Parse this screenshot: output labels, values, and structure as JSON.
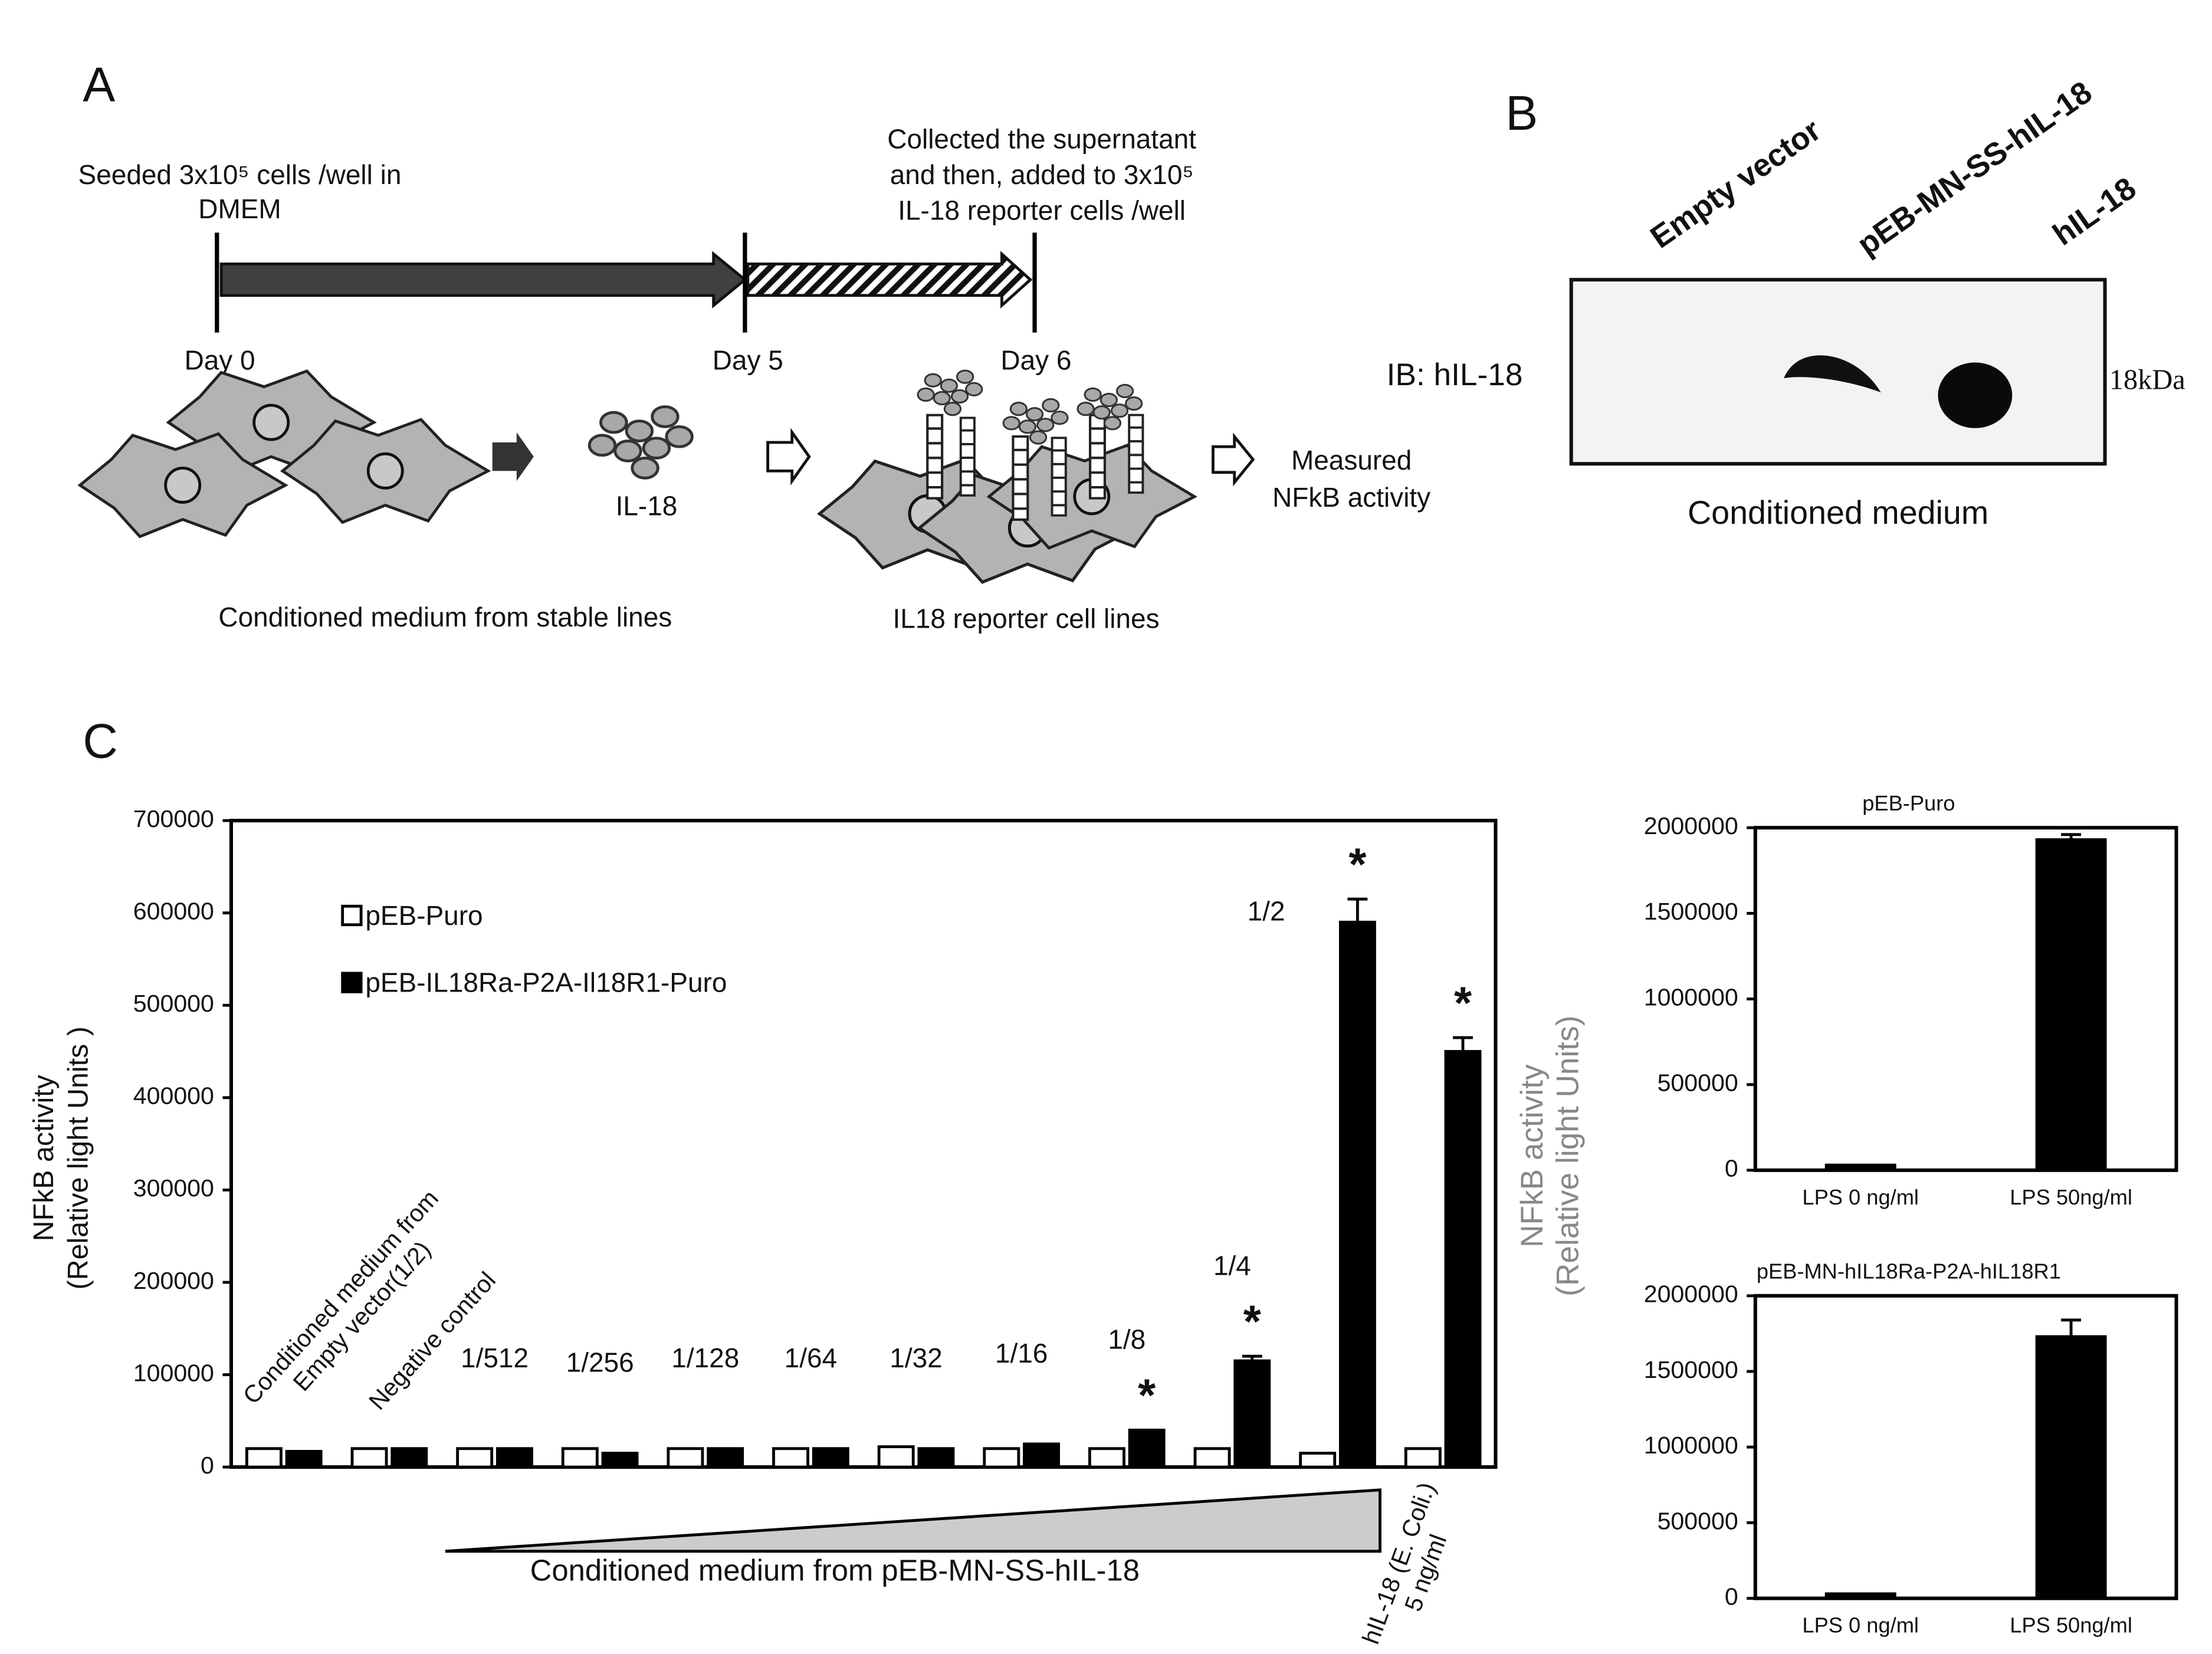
{
  "panel_a": {
    "label": "A",
    "seed_line1": "Seeded 3x10⁵ cells /well in",
    "seed_line2": "DMEM",
    "collect_line1": "Collected the supernatant",
    "collect_line2": "and then, added to  3x10⁵",
    "collect_line3": "IL-18 reporter cells /well",
    "day0": "Day 0",
    "day5": "Day 5",
    "day6": "Day 6",
    "il18": "IL-18",
    "measured_line1": "Measured",
    "measured_line2": "NFkB activity",
    "caption_left": "Conditioned medium from stable lines",
    "caption_right": "IL18 reporter cell lines"
  },
  "panel_b": {
    "label": "B",
    "lanes": [
      "Empty vector",
      "pEB-MN-SS-hIL-18",
      "hIL-18"
    ],
    "antibody": "IB: hIL-18",
    "marker": "18kDa",
    "caption": "Conditioned medium"
  },
  "panel_c": {
    "label": "C",
    "small_ylabel": [
      "NFkB activity",
      "(Relative light Units)"
    ]
  },
  "chart_data": [
    {
      "type": "bar",
      "categories": [
        "Conditioned medium from Empty vector(1/2)",
        "Negative control",
        "1/512",
        "1/256",
        "1/128",
        "1/64",
        "1/32",
        "1/16",
        "1/8",
        "1/4",
        "1/2",
        "hIL-18 (E. Coli.) 5 ng/ml"
      ],
      "series": [
        {
          "name": "pEB-Puro",
          "color": "#ffffff",
          "values": [
            20000,
            20000,
            20000,
            20000,
            20000,
            20000,
            22000,
            20000,
            20000,
            20000,
            15000,
            20000
          ]
        },
        {
          "name": "pEB-IL18Ra-P2A-Il18R1-Puro",
          "color": "#000000",
          "values": [
            17000,
            20000,
            20000,
            15000,
            20000,
            20000,
            20000,
            25000,
            40000,
            115000,
            590000,
            450000
          ],
          "errors": [
            null,
            null,
            null,
            null,
            null,
            null,
            null,
            null,
            null,
            5000,
            25000,
            15000
          ]
        }
      ],
      "significance": [
        null,
        null,
        null,
        null,
        null,
        null,
        null,
        null,
        "*",
        "*",
        "*",
        "*"
      ],
      "ylabel": [
        "NFkB activity",
        "(Relative light Units )"
      ],
      "xlabel": "Conditioned medium from pEB-MN-SS-hIL-18",
      "ylim": [
        0,
        700000
      ],
      "yticks": [
        0,
        100000,
        200000,
        300000,
        400000,
        500000,
        600000,
        700000
      ],
      "legend": "upper left"
    },
    {
      "type": "bar",
      "title": "pEB-Puro",
      "categories": [
        "LPS 0 ng/ml",
        "LPS 50ng/ml"
      ],
      "values": [
        30000,
        1930000
      ],
      "errors": [
        null,
        30000
      ],
      "color": "#000000",
      "ylim": [
        0,
        2000000
      ],
      "yticks": [
        0,
        500000,
        1000000,
        1500000,
        2000000
      ]
    },
    {
      "type": "bar",
      "title": "pEB-MN-hIL18Ra-P2A-hIL18R1",
      "categories": [
        "LPS 0 ng/ml",
        "LPS 50ng/ml"
      ],
      "values": [
        30000,
        1730000
      ],
      "errors": [
        null,
        110000
      ],
      "color": "#000000",
      "ylim": [
        0,
        2000000
      ],
      "yticks": [
        0,
        500000,
        1000000,
        1500000,
        2000000
      ]
    }
  ]
}
